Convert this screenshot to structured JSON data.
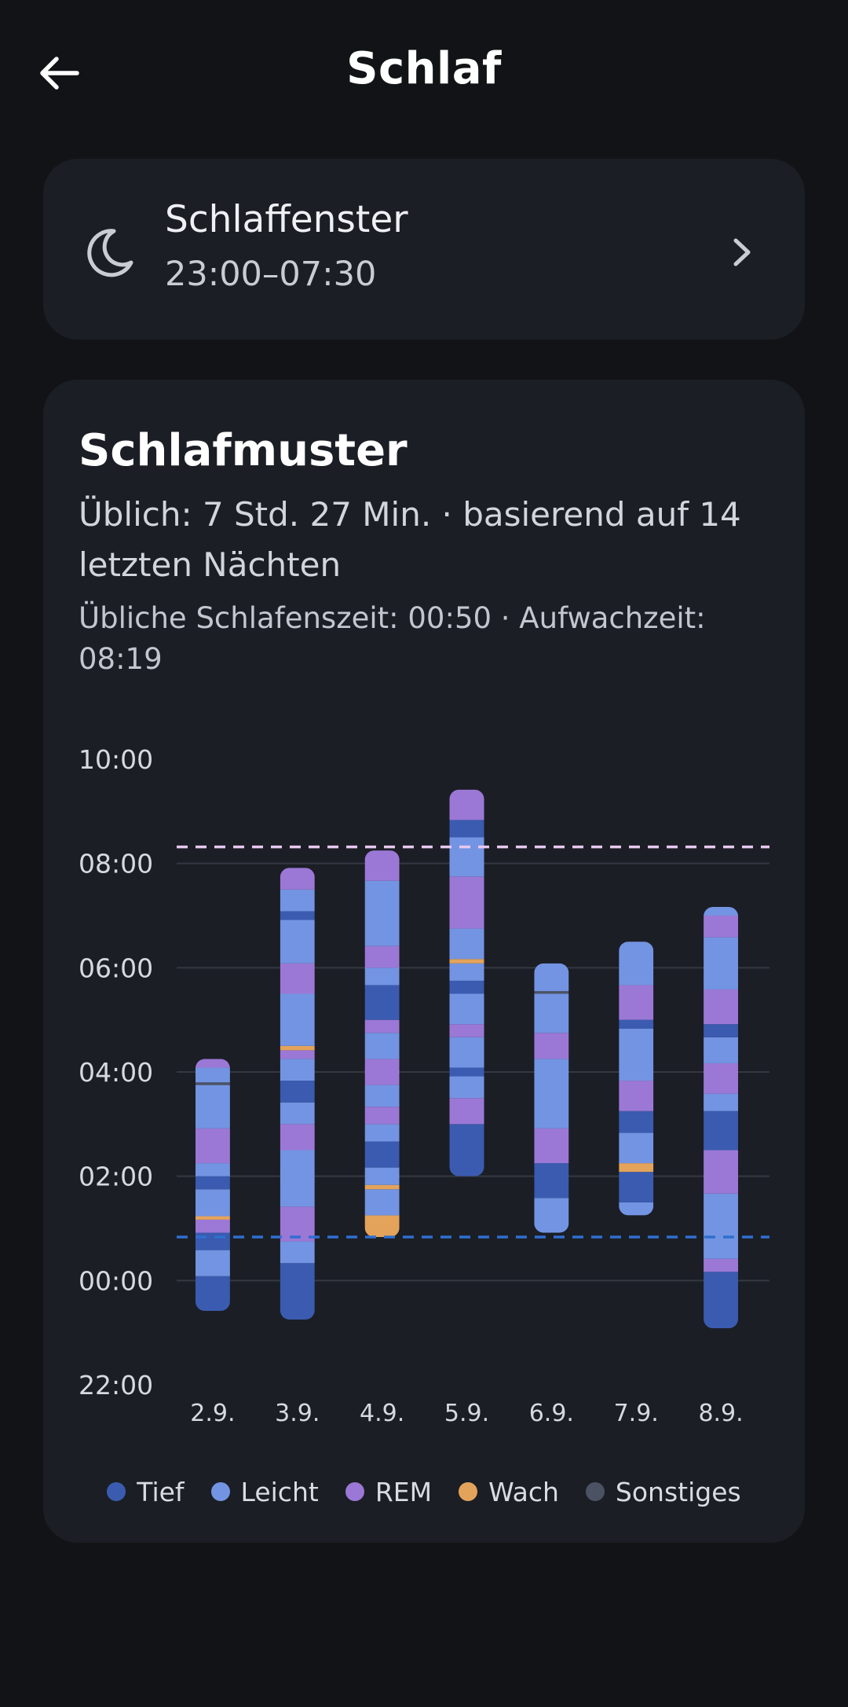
{
  "header": {
    "title": "Schlaf",
    "back_icon": "arrow-left-icon"
  },
  "sleep_window": {
    "icon": "moon-icon",
    "title": "Schlaffenster",
    "value": "23:00–07:30",
    "chevron_icon": "chevron-right-icon"
  },
  "pattern": {
    "title": "Schlafmuster",
    "summary": "Üblich: 7 Std. 27 Min. · basierend auf 14 letzten Nächten",
    "times": "Übliche Schlafenszeit: 00:50 · Aufwachzeit: 08:19"
  },
  "colors": {
    "background": "#121316",
    "card": "#1b1e25",
    "Tief": "#3a5bb0",
    "Leicht": "#7394e2",
    "REM": "#9b78d6",
    "Wach": "#e3a35b",
    "Sonstiges": "#4b5263",
    "bedtime_line": "#2f6fd0",
    "wake_line": "#e7c8ef"
  },
  "legend": [
    {
      "label": "Tief",
      "color": "#3a5bb0"
    },
    {
      "label": "Leicht",
      "color": "#7394e2"
    },
    {
      "label": "REM",
      "color": "#9b78d6"
    },
    {
      "label": "Wach",
      "color": "#e3a35b"
    },
    {
      "label": "Sonstiges",
      "color": "#4b5263"
    }
  ],
  "chart_data": {
    "type": "bar",
    "title": "Schlafmuster",
    "y_tick_labels": [
      "22:00",
      "00:00",
      "02:00",
      "04:00",
      "06:00",
      "08:00",
      "10:00"
    ],
    "y_range_hours_since_2200": [
      0,
      12
    ],
    "categories": [
      "2.9.",
      "3.9.",
      "4.9.",
      "5.9.",
      "6.9.",
      "7.9.",
      "8.9."
    ],
    "reference_lines": [
      {
        "name": "Übliche Schlafenszeit",
        "time": "00:50",
        "style": "dashed",
        "color": "#2f6fd0"
      },
      {
        "name": "Aufwachzeit",
        "time": "08:19",
        "style": "dashed",
        "color": "#e7c8ef"
      }
    ],
    "series": [
      {
        "category": "2.9.",
        "start": "23:25",
        "end": "04:15",
        "segments": [
          {
            "stage": "Tief",
            "from": "23:25",
            "to": "00:05"
          },
          {
            "stage": "Leicht",
            "from": "00:05",
            "to": "00:35"
          },
          {
            "stage": "Tief",
            "from": "00:35",
            "to": "00:55"
          },
          {
            "stage": "REM",
            "from": "00:55",
            "to": "01:10"
          },
          {
            "stage": "Wach",
            "from": "01:10",
            "to": "01:14"
          },
          {
            "stage": "Leicht",
            "from": "01:14",
            "to": "01:45"
          },
          {
            "stage": "Tief",
            "from": "01:45",
            "to": "02:00"
          },
          {
            "stage": "Leicht",
            "from": "02:00",
            "to": "02:15"
          },
          {
            "stage": "REM",
            "from": "02:15",
            "to": "02:55"
          },
          {
            "stage": "Leicht",
            "from": "02:55",
            "to": "03:45"
          },
          {
            "stage": "Sonstiges",
            "from": "03:45",
            "to": "03:48"
          },
          {
            "stage": "Leicht",
            "from": "03:48",
            "to": "04:05"
          },
          {
            "stage": "REM",
            "from": "04:05",
            "to": "04:15"
          }
        ]
      },
      {
        "category": "3.9.",
        "start": "23:15",
        "end": "07:55",
        "segments": [
          {
            "stage": "Tief",
            "from": "23:15",
            "to": "00:20"
          },
          {
            "stage": "Leicht",
            "from": "00:20",
            "to": "00:45"
          },
          {
            "stage": "REM",
            "from": "00:45",
            "to": "01:25"
          },
          {
            "stage": "Leicht",
            "from": "01:25",
            "to": "02:30"
          },
          {
            "stage": "REM",
            "from": "02:30",
            "to": "03:00"
          },
          {
            "stage": "Leicht",
            "from": "03:00",
            "to": "03:25"
          },
          {
            "stage": "Tief",
            "from": "03:25",
            "to": "03:50"
          },
          {
            "stage": "Leicht",
            "from": "03:50",
            "to": "04:15"
          },
          {
            "stage": "REM",
            "from": "04:15",
            "to": "04:25"
          },
          {
            "stage": "Wach",
            "from": "04:25",
            "to": "04:30"
          },
          {
            "stage": "Leicht",
            "from": "04:30",
            "to": "05:30"
          },
          {
            "stage": "REM",
            "from": "05:30",
            "to": "06:05"
          },
          {
            "stage": "Leicht",
            "from": "06:05",
            "to": "06:55"
          },
          {
            "stage": "Tief",
            "from": "06:55",
            "to": "07:05"
          },
          {
            "stage": "Leicht",
            "from": "07:05",
            "to": "07:30"
          },
          {
            "stage": "REM",
            "from": "07:30",
            "to": "07:55"
          }
        ]
      },
      {
        "category": "4.9.",
        "start": "00:50",
        "end": "08:15",
        "segments": [
          {
            "stage": "Wach",
            "from": "00:50",
            "to": "01:15"
          },
          {
            "stage": "Leicht",
            "from": "01:15",
            "to": "01:45"
          },
          {
            "stage": "Wach",
            "from": "01:45",
            "to": "01:50"
          },
          {
            "stage": "Leicht",
            "from": "01:50",
            "to": "02:10"
          },
          {
            "stage": "Tief",
            "from": "02:10",
            "to": "02:40"
          },
          {
            "stage": "Leicht",
            "from": "02:40",
            "to": "03:00"
          },
          {
            "stage": "REM",
            "from": "03:00",
            "to": "03:20"
          },
          {
            "stage": "Leicht",
            "from": "03:20",
            "to": "03:45"
          },
          {
            "stage": "REM",
            "from": "03:45",
            "to": "04:15"
          },
          {
            "stage": "Leicht",
            "from": "04:15",
            "to": "04:45"
          },
          {
            "stage": "REM",
            "from": "04:45",
            "to": "05:00"
          },
          {
            "stage": "Tief",
            "from": "05:00",
            "to": "05:40"
          },
          {
            "stage": "Leicht",
            "from": "05:40",
            "to": "06:00"
          },
          {
            "stage": "REM",
            "from": "06:00",
            "to": "06:25"
          },
          {
            "stage": "Leicht",
            "from": "06:25",
            "to": "07:40"
          },
          {
            "stage": "REM",
            "from": "07:40",
            "to": "08:15"
          }
        ]
      },
      {
        "category": "5.9.",
        "start": "02:00",
        "end": "09:25",
        "segments": [
          {
            "stage": "Tief",
            "from": "02:00",
            "to": "03:00"
          },
          {
            "stage": "REM",
            "from": "03:00",
            "to": "03:30"
          },
          {
            "stage": "Leicht",
            "from": "03:30",
            "to": "03:55"
          },
          {
            "stage": "Tief",
            "from": "03:55",
            "to": "04:05"
          },
          {
            "stage": "Leicht",
            "from": "04:05",
            "to": "04:40"
          },
          {
            "stage": "REM",
            "from": "04:40",
            "to": "04:55"
          },
          {
            "stage": "Leicht",
            "from": "04:55",
            "to": "05:30"
          },
          {
            "stage": "Tief",
            "from": "05:30",
            "to": "05:45"
          },
          {
            "stage": "Leicht",
            "from": "05:45",
            "to": "06:05"
          },
          {
            "stage": "Wach",
            "from": "06:05",
            "to": "06:10"
          },
          {
            "stage": "Leicht",
            "from": "06:10",
            "to": "06:45"
          },
          {
            "stage": "REM",
            "from": "06:45",
            "to": "07:45"
          },
          {
            "stage": "Leicht",
            "from": "07:45",
            "to": "08:30"
          },
          {
            "stage": "Tief",
            "from": "08:30",
            "to": "08:50"
          },
          {
            "stage": "REM",
            "from": "08:50",
            "to": "09:25"
          }
        ]
      },
      {
        "category": "6.9.",
        "start": "00:55",
        "end": "06:05",
        "segments": [
          {
            "stage": "Leicht",
            "from": "00:55",
            "to": "01:35"
          },
          {
            "stage": "Tief",
            "from": "01:35",
            "to": "02:15"
          },
          {
            "stage": "REM",
            "from": "02:15",
            "to": "02:55"
          },
          {
            "stage": "Leicht",
            "from": "02:55",
            "to": "04:15"
          },
          {
            "stage": "REM",
            "from": "04:15",
            "to": "04:45"
          },
          {
            "stage": "Leicht",
            "from": "04:45",
            "to": "05:30"
          },
          {
            "stage": "Sonstiges",
            "from": "05:30",
            "to": "05:33"
          },
          {
            "stage": "Leicht",
            "from": "05:33",
            "to": "06:05"
          }
        ]
      },
      {
        "category": "7.9.",
        "start": "01:15",
        "end": "06:30",
        "segments": [
          {
            "stage": "Leicht",
            "from": "01:15",
            "to": "01:30"
          },
          {
            "stage": "Tief",
            "from": "01:30",
            "to": "02:05"
          },
          {
            "stage": "Wach",
            "from": "02:05",
            "to": "02:15"
          },
          {
            "stage": "Leicht",
            "from": "02:15",
            "to": "02:50"
          },
          {
            "stage": "Tief",
            "from": "02:50",
            "to": "03:15"
          },
          {
            "stage": "REM",
            "from": "03:15",
            "to": "03:50"
          },
          {
            "stage": "Leicht",
            "from": "03:50",
            "to": "04:50"
          },
          {
            "stage": "Tief",
            "from": "04:50",
            "to": "05:00"
          },
          {
            "stage": "REM",
            "from": "05:00",
            "to": "05:40"
          },
          {
            "stage": "Leicht",
            "from": "05:40",
            "to": "06:30"
          }
        ]
      },
      {
        "category": "8.9.",
        "start": "23:05",
        "end": "07:10",
        "segments": [
          {
            "stage": "Tief",
            "from": "23:05",
            "to": "00:10"
          },
          {
            "stage": "REM",
            "from": "00:10",
            "to": "00:25"
          },
          {
            "stage": "Leicht",
            "from": "00:25",
            "to": "01:40"
          },
          {
            "stage": "REM",
            "from": "01:40",
            "to": "02:30"
          },
          {
            "stage": "Tief",
            "from": "02:30",
            "to": "03:15"
          },
          {
            "stage": "Leicht",
            "from": "03:15",
            "to": "03:35"
          },
          {
            "stage": "REM",
            "from": "03:35",
            "to": "04:10"
          },
          {
            "stage": "Leicht",
            "from": "04:10",
            "to": "04:40"
          },
          {
            "stage": "Tief",
            "from": "04:40",
            "to": "04:55"
          },
          {
            "stage": "REM",
            "from": "04:55",
            "to": "05:35"
          },
          {
            "stage": "Leicht",
            "from": "05:35",
            "to": "06:35"
          },
          {
            "stage": "REM",
            "from": "06:35",
            "to": "07:00"
          },
          {
            "stage": "Leicht",
            "from": "07:00",
            "to": "07:10"
          }
        ]
      }
    ]
  }
}
